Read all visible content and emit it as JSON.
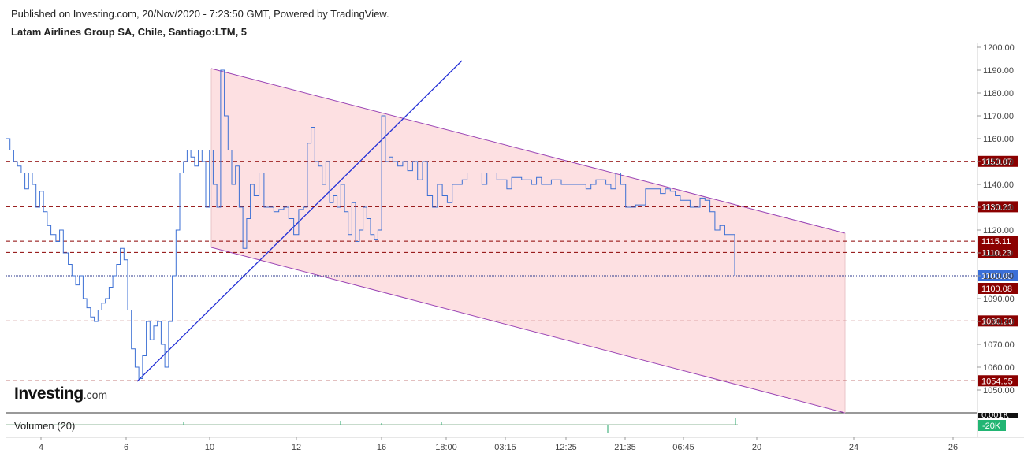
{
  "header": {
    "published": "Published on Investing.com, 20/Nov/2020 - 7:23:50 GMT, Powered by TradingView.",
    "title": "Latam Airlines Group SA, Chile, Santiago:LTM, 5"
  },
  "logo": {
    "main": "Investing",
    "suffix": ".com"
  },
  "volume": {
    "label": "Volumen (20)",
    "readouts": [
      "0.001K",
      "-20K"
    ]
  },
  "colors": {
    "price_line": "#3b6fd4",
    "channel_fill": "#fde0e2",
    "channel_border": "#9b45b5",
    "trend_line": "#2430d6",
    "level_line": "#8b0000",
    "current_price": "#3a6fd8"
  },
  "chart_data": {
    "type": "line",
    "title": "Latam Airlines Group SA, Chile, Santiago:LTM, 5",
    "y_range": [
      1040,
      1200
    ],
    "y_ticks": [
      "1050.00",
      "1060.00",
      "1070.00",
      "1080.00",
      "1090.00",
      "1100.00",
      "1110.00",
      "1120.00",
      "1130.00",
      "1140.00",
      "1150.00",
      "1160.00",
      "1170.00",
      "1180.00",
      "1190.00",
      "1200.00"
    ],
    "x_ticks": [
      "4",
      "6",
      "10",
      "12",
      "16",
      "18:00",
      "03:15",
      "12:25",
      "21:35",
      "06:45",
      "20",
      "24",
      "26"
    ],
    "levels": [
      {
        "label": "1150.07",
        "value": 1150.07
      },
      {
        "label": "1130.21",
        "value": 1130.21
      },
      {
        "label": "1115.11",
        "value": 1115.11
      },
      {
        "label": "1110.23",
        "value": 1110.23
      },
      {
        "label": "1080.23",
        "value": 1080.23
      },
      {
        "label": "1054.05",
        "value": 1054.05
      }
    ],
    "current_price": {
      "label": "1100.00",
      "value": 1100.0
    },
    "last_close_label": "1100.08",
    "price_series": [
      [
        0,
        1160
      ],
      [
        3,
        1155
      ],
      [
        6,
        1150
      ],
      [
        9,
        1148
      ],
      [
        12,
        1145
      ],
      [
        15,
        1138
      ],
      [
        18,
        1145
      ],
      [
        21,
        1140
      ],
      [
        24,
        1130
      ],
      [
        27,
        1137
      ],
      [
        30,
        1128
      ],
      [
        33,
        1122
      ],
      [
        36,
        1118
      ],
      [
        40,
        1115
      ],
      [
        43,
        1120
      ],
      [
        46,
        1110
      ],
      [
        50,
        1105
      ],
      [
        53,
        1100
      ],
      [
        56,
        1096
      ],
      [
        59,
        1100
      ],
      [
        62,
        1090
      ],
      [
        65,
        1086
      ],
      [
        68,
        1082
      ],
      [
        71,
        1080
      ],
      [
        74,
        1085
      ],
      [
        77,
        1088
      ],
      [
        80,
        1090
      ],
      [
        83,
        1095
      ],
      [
        86,
        1100
      ],
      [
        89,
        1105
      ],
      [
        92,
        1112
      ],
      [
        95,
        1107
      ],
      [
        98,
        1085
      ],
      [
        101,
        1068
      ],
      [
        104,
        1060
      ],
      [
        107,
        1055
      ],
      [
        110,
        1065
      ],
      [
        113,
        1080
      ],
      [
        116,
        1072
      ],
      [
        119,
        1078
      ],
      [
        122,
        1080
      ],
      [
        125,
        1070
      ],
      [
        128,
        1060
      ],
      [
        131,
        1080
      ],
      [
        134,
        1100
      ],
      [
        137,
        1120
      ],
      [
        140,
        1145
      ],
      [
        143,
        1150
      ],
      [
        146,
        1155
      ],
      [
        149,
        1152
      ],
      [
        152,
        1148
      ],
      [
        155,
        1155
      ],
      [
        158,
        1150
      ],
      [
        161,
        1130
      ],
      [
        164,
        1155
      ],
      [
        167,
        1140
      ],
      [
        170,
        1130
      ],
      [
        173,
        1190
      ],
      [
        176,
        1170
      ],
      [
        179,
        1155
      ],
      [
        182,
        1140
      ],
      [
        185,
        1148
      ],
      [
        188,
        1130
      ],
      [
        191,
        1112
      ],
      [
        194,
        1125
      ],
      [
        197,
        1140
      ],
      [
        200,
        1135
      ],
      [
        204,
        1145
      ],
      [
        208,
        1130
      ],
      [
        212,
        1130
      ],
      [
        216,
        1128
      ],
      [
        220,
        1129
      ],
      [
        224,
        1130
      ],
      [
        228,
        1125
      ],
      [
        232,
        1118
      ],
      [
        236,
        1129
      ],
      [
        240,
        1130
      ],
      [
        243,
        1158
      ],
      [
        246,
        1165
      ],
      [
        249,
        1150
      ],
      [
        252,
        1148
      ],
      [
        255,
        1140
      ],
      [
        258,
        1150
      ],
      [
        261,
        1132
      ],
      [
        264,
        1135
      ],
      [
        267,
        1130
      ],
      [
        270,
        1140
      ],
      [
        273,
        1128
      ],
      [
        276,
        1118
      ],
      [
        279,
        1132
      ],
      [
        282,
        1115
      ],
      [
        285,
        1120
      ],
      [
        288,
        1130
      ],
      [
        291,
        1125
      ],
      [
        294,
        1118
      ],
      [
        297,
        1116
      ],
      [
        300,
        1120
      ],
      [
        303,
        1170
      ],
      [
        306,
        1150
      ],
      [
        309,
        1152
      ],
      [
        312,
        1150
      ],
      [
        316,
        1148
      ],
      [
        320,
        1150
      ],
      [
        324,
        1146
      ],
      [
        328,
        1150
      ],
      [
        332,
        1142
      ],
      [
        336,
        1150
      ],
      [
        340,
        1135
      ],
      [
        344,
        1130
      ],
      [
        348,
        1140
      ],
      [
        352,
        1135
      ],
      [
        356,
        1132
      ],
      [
        360,
        1140
      ],
      [
        364,
        1140
      ],
      [
        368,
        1142
      ],
      [
        372,
        1145
      ],
      [
        376,
        1145
      ],
      [
        380,
        1145
      ],
      [
        384,
        1140
      ],
      [
        388,
        1145
      ],
      [
        392,
        1145
      ],
      [
        396,
        1142
      ],
      [
        400,
        1142
      ],
      [
        404,
        1138
      ],
      [
        408,
        1143
      ],
      [
        412,
        1143
      ],
      [
        416,
        1142
      ],
      [
        420,
        1142
      ],
      [
        424,
        1140
      ],
      [
        428,
        1143
      ],
      [
        432,
        1140
      ],
      [
        436,
        1140
      ],
      [
        440,
        1142
      ],
      [
        444,
        1142
      ],
      [
        448,
        1140
      ],
      [
        452,
        1140
      ],
      [
        456,
        1140
      ],
      [
        460,
        1140
      ],
      [
        464,
        1140
      ],
      [
        468,
        1138
      ],
      [
        472,
        1140
      ],
      [
        476,
        1142
      ],
      [
        480,
        1142
      ],
      [
        484,
        1140
      ],
      [
        488,
        1138
      ],
      [
        492,
        1145
      ],
      [
        496,
        1140
      ],
      [
        500,
        1130
      ],
      [
        504,
        1130
      ],
      [
        508,
        1131
      ],
      [
        512,
        1131
      ],
      [
        516,
        1138
      ],
      [
        520,
        1138
      ],
      [
        524,
        1138
      ],
      [
        528,
        1136
      ],
      [
        532,
        1138
      ],
      [
        536,
        1137
      ],
      [
        540,
        1135
      ],
      [
        544,
        1133
      ],
      [
        548,
        1133
      ],
      [
        552,
        1130
      ],
      [
        556,
        1130
      ],
      [
        560,
        1134
      ],
      [
        564,
        1133
      ],
      [
        568,
        1128
      ],
      [
        572,
        1120
      ],
      [
        576,
        1122
      ],
      [
        580,
        1118
      ],
      [
        584,
        1118
      ],
      [
        588,
        1100
      ]
    ]
  }
}
